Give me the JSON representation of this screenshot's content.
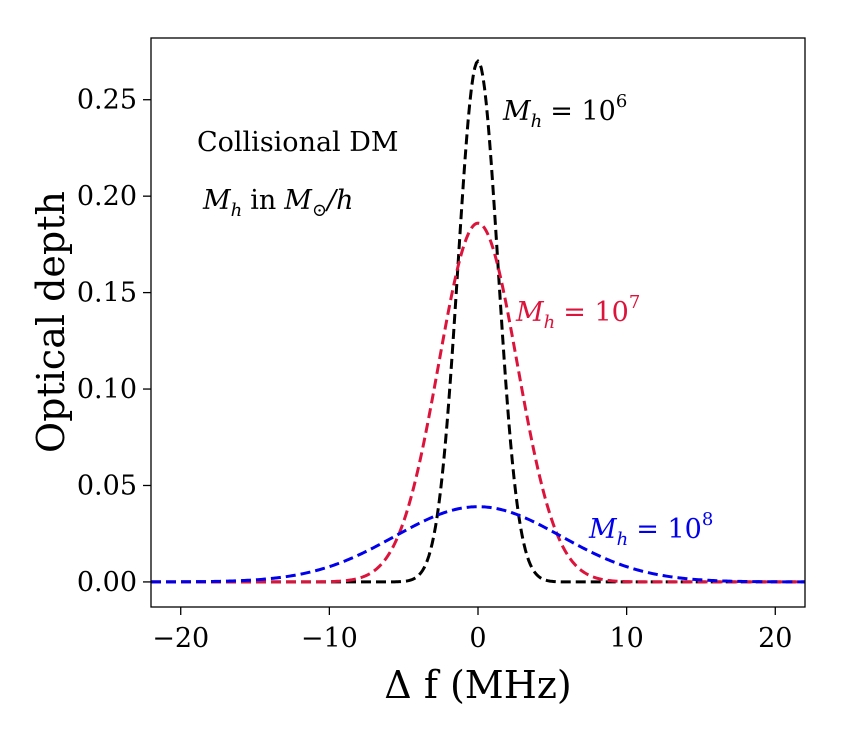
{
  "chart_data": {
    "type": "line",
    "title": "",
    "xlabel": "Δ f (MHz)",
    "ylabel": "Optical depth",
    "xlim": [
      -22,
      22
    ],
    "ylim": [
      -0.013,
      0.282
    ],
    "xticks": [
      -20,
      -10,
      0,
      10,
      20
    ],
    "xtick_labels": [
      "−20",
      "−10",
      "0",
      "10",
      "20"
    ],
    "yticks": [
      0.0,
      0.05,
      0.1,
      0.15,
      0.2,
      0.25
    ],
    "ytick_labels": [
      "0.00",
      "0.05",
      "0.10",
      "0.15",
      "0.20",
      "0.25"
    ],
    "grid": false,
    "series": [
      {
        "name": "M_h = 10^6",
        "color": "#000000",
        "style": "dashed",
        "shape": "gaussian",
        "peak": 0.27,
        "center": 0,
        "sigma": 1.35
      },
      {
        "name": "M_h = 10^7",
        "color": "#dc143c",
        "style": "dashed",
        "shape": "gaussian",
        "peak": 0.186,
        "center": 0,
        "sigma": 2.65
      },
      {
        "name": "M_h = 10^8",
        "color": "#0000ee",
        "style": "dashed",
        "shape": "gaussian",
        "peak": 0.039,
        "center": 0,
        "sigma": 5.6
      }
    ],
    "annotations": {
      "collisional": "Collisional DM",
      "units_var": "M",
      "units_var_sub": "h",
      "units_in": "in",
      "units_M": "M",
      "units_sun": "⊙",
      "units_h": "/h",
      "labels": [
        {
          "color": "#000000",
          "var": "M",
          "sub": "h",
          "eq": "= 10",
          "exp": "6"
        },
        {
          "color": "#dc143c",
          "var": "M",
          "sub": "h",
          "eq": "= 10",
          "exp": "7"
        },
        {
          "color": "#0000ee",
          "var": "M",
          "sub": "h",
          "eq": "= 10",
          "exp": "8"
        }
      ]
    }
  }
}
